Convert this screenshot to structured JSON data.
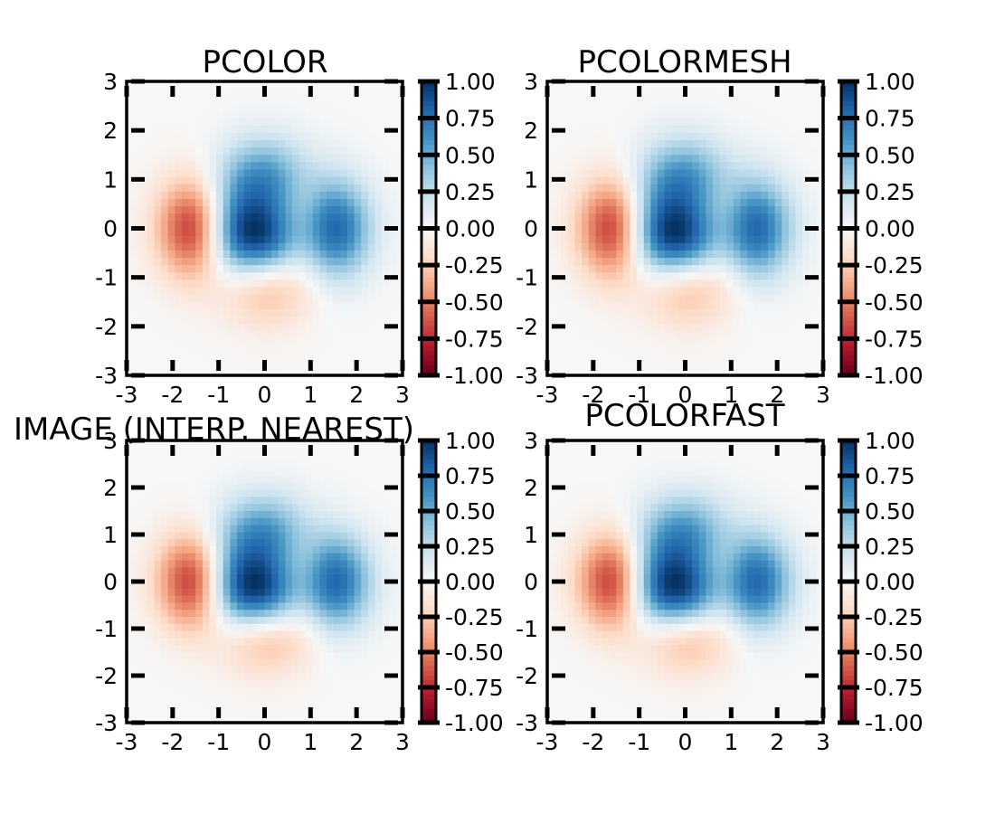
{
  "chart_data": [
    {
      "type": "heatmap",
      "title": "PCOLOR",
      "xlabel": "",
      "ylabel": "",
      "x_ticks": [
        "-3",
        "-2",
        "-1",
        "0",
        "1",
        "2",
        "3"
      ],
      "y_ticks": [
        "3",
        "2",
        "1",
        "0",
        "-1",
        "-2",
        "-3"
      ],
      "xlim": [
        -3,
        3
      ],
      "ylim": [
        -3,
        3
      ],
      "colormap": "RdBu",
      "colorbar_ticks": [
        "1.00",
        "0.75",
        "0.50",
        "0.25",
        "0.00",
        "-0.25",
        "-0.50",
        "-0.75",
        "-1.00"
      ],
      "clim": [
        -1,
        1
      ]
    },
    {
      "type": "heatmap",
      "title": "PCOLORMESH",
      "xlabel": "",
      "ylabel": "",
      "x_ticks": [
        "-3",
        "-2",
        "-1",
        "0",
        "1",
        "2",
        "3"
      ],
      "y_ticks": [
        "3",
        "2",
        "1",
        "0",
        "-1",
        "-2",
        "-3"
      ],
      "xlim": [
        -3,
        3
      ],
      "ylim": [
        -3,
        3
      ],
      "colormap": "RdBu",
      "colorbar_ticks": [
        "1.00",
        "0.75",
        "0.50",
        "0.25",
        "0.00",
        "-0.25",
        "-0.50",
        "-0.75",
        "-1.00"
      ],
      "clim": [
        -1,
        1
      ]
    },
    {
      "type": "heatmap",
      "title": "IMAGE (INTERP. NEAREST)",
      "xlabel": "",
      "ylabel": "",
      "x_ticks": [
        "-3",
        "-2",
        "-1",
        "0",
        "1",
        "2",
        "3"
      ],
      "y_ticks": [
        "3",
        "2",
        "1",
        "0",
        "-1",
        "-2",
        "-3"
      ],
      "xlim": [
        -3,
        3
      ],
      "ylim": [
        -3,
        3
      ],
      "colormap": "RdBu",
      "colorbar_ticks": [
        "1.00",
        "0.75",
        "0.50",
        "0.25",
        "0.00",
        "-0.25",
        "-0.50",
        "-0.75",
        "-1.00"
      ],
      "clim": [
        -1,
        1
      ]
    },
    {
      "type": "heatmap",
      "title": "PCOLORFAST",
      "xlabel": "",
      "ylabel": "",
      "x_ticks": [
        "-3",
        "-2",
        "-1",
        "0",
        "1",
        "2",
        "3"
      ],
      "y_ticks": [
        "3",
        "2",
        "1",
        "0",
        "-1",
        "-2",
        "-3"
      ],
      "xlim": [
        -3,
        3
      ],
      "ylim": [
        -3,
        3
      ],
      "colormap": "RdBu",
      "colorbar_ticks": [
        "1.00",
        "0.75",
        "0.50",
        "0.25",
        "0.00",
        "-0.25",
        "-0.50",
        "-0.75",
        "-1.00"
      ],
      "clim": [
        -1,
        1
      ]
    }
  ]
}
